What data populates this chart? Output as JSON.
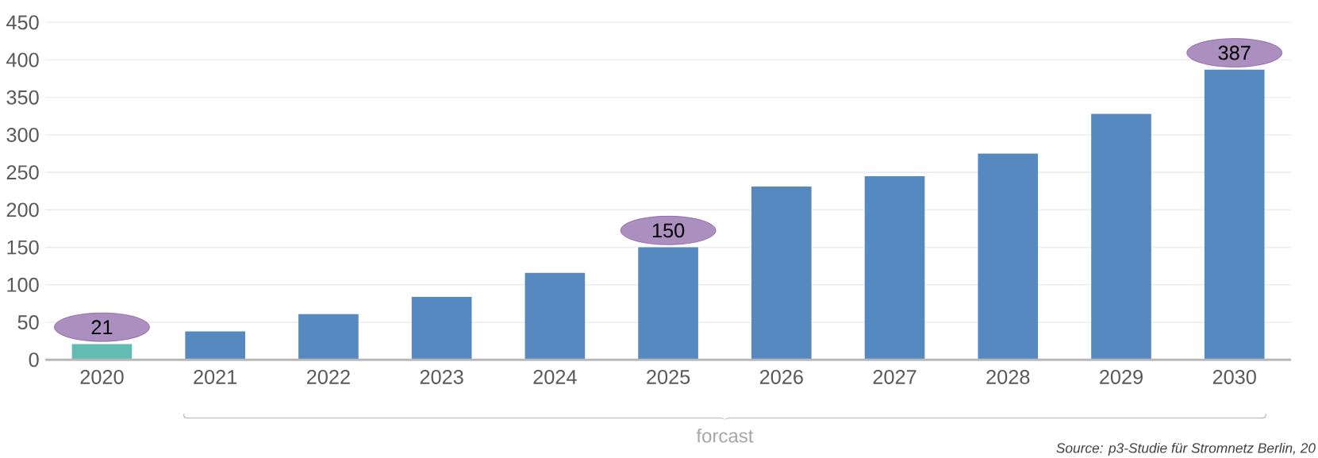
{
  "chart_data": {
    "type": "bar",
    "categories": [
      "2020",
      "2021",
      "2022",
      "2023",
      "2024",
      "2025",
      "2026",
      "2027",
      "2028",
      "2029",
      "2030"
    ],
    "values": [
      21,
      38,
      61,
      84,
      116,
      150,
      231,
      245,
      275,
      328,
      387
    ],
    "colors": [
      "#63bbb3",
      "#5689c0",
      "#5689c0",
      "#5689c0",
      "#5689c0",
      "#5689c0",
      "#5689c0",
      "#5689c0",
      "#5689c0",
      "#5689c0",
      "#5689c0"
    ],
    "value_labels": [
      "21",
      null,
      null,
      null,
      null,
      "150",
      null,
      null,
      null,
      null,
      "387"
    ],
    "ylim": [
      0,
      450
    ],
    "yticks": [
      0,
      50,
      100,
      150,
      200,
      250,
      300,
      350,
      400,
      450
    ],
    "grid": "y",
    "annotations": [
      "forcast",
      "Source: p3-Studie für Stromnetz Berlin, 20"
    ]
  }
}
